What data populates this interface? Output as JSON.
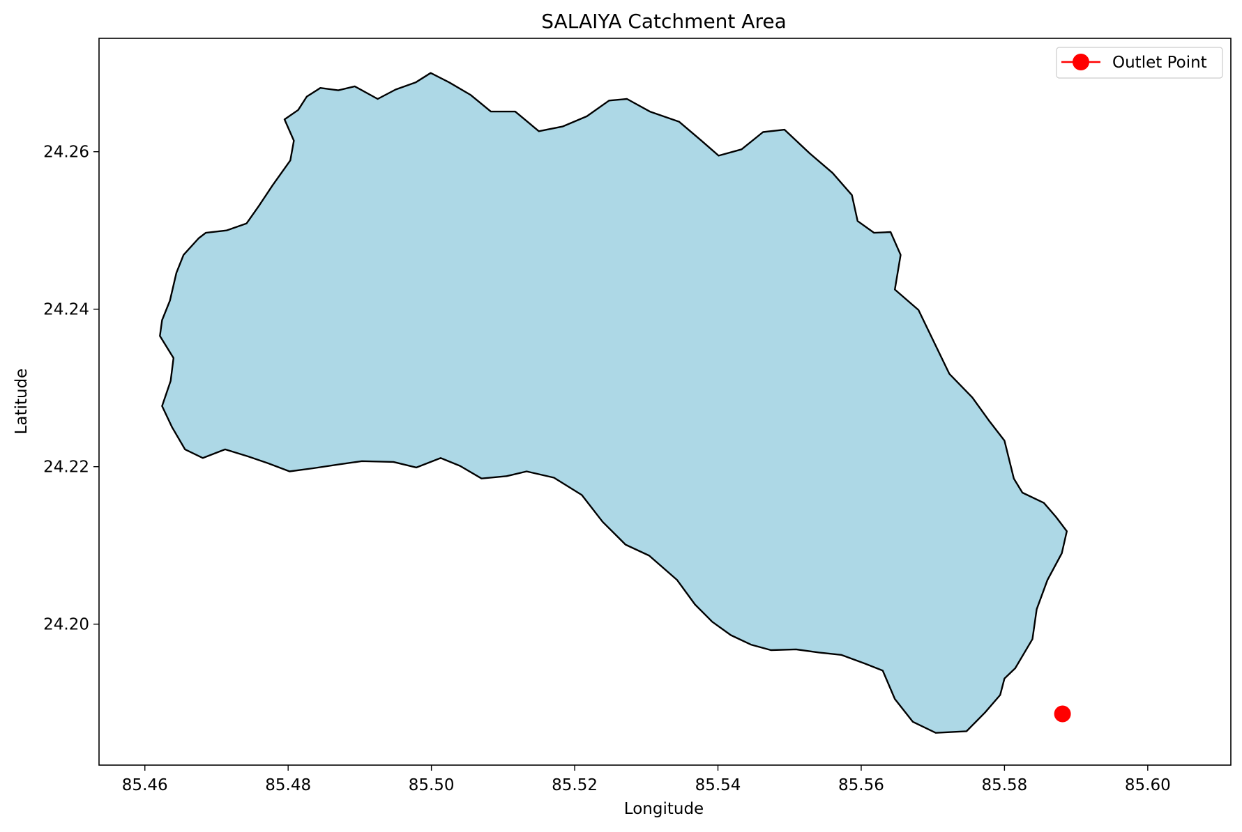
{
  "chart_data": {
    "type": "map",
    "title": "SALAIYA Catchment Area",
    "xlabel": "Longitude",
    "ylabel": "Latitude",
    "xlim": [
      85.4536,
      85.6116
    ],
    "ylim": [
      24.1821,
      24.2744
    ],
    "xticks": [
      {
        "value": 85.46,
        "label": "85.46"
      },
      {
        "value": 85.48,
        "label": "85.48"
      },
      {
        "value": 85.5,
        "label": "85.50"
      },
      {
        "value": 85.52,
        "label": "85.52"
      },
      {
        "value": 85.54,
        "label": "85.54"
      },
      {
        "value": 85.56,
        "label": "85.56"
      },
      {
        "value": 85.58,
        "label": "85.58"
      },
      {
        "value": 85.6,
        "label": "85.60"
      }
    ],
    "yticks": [
      {
        "value": 24.2,
        "label": "24.20"
      },
      {
        "value": 24.22,
        "label": "24.22"
      },
      {
        "value": 24.24,
        "label": "24.24"
      },
      {
        "value": 24.26,
        "label": "24.26"
      }
    ],
    "grid": false,
    "legend": {
      "placement": "top-right",
      "entries": [
        {
          "label": "Outlet Point",
          "color": "#ff0000",
          "marker": "circle"
        }
      ]
    },
    "catchment": {
      "fill": "#add8e6",
      "edge": "#000000",
      "boundary": [
        [
          85.4826,
          24.267
        ],
        [
          85.4845,
          24.2681
        ],
        [
          85.487,
          24.2678
        ],
        [
          85.4893,
          24.2683
        ],
        [
          85.4925,
          24.2667
        ],
        [
          85.495,
          24.2679
        ],
        [
          85.4978,
          24.2688
        ],
        [
          85.4999,
          24.27
        ],
        [
          85.5025,
          24.2688
        ],
        [
          85.5055,
          24.2672
        ],
        [
          85.5083,
          24.2651
        ],
        [
          85.5117,
          24.2651
        ],
        [
          85.515,
          24.2626
        ],
        [
          85.5183,
          24.2632
        ],
        [
          85.5217,
          24.2645
        ],
        [
          85.5248,
          24.2665
        ],
        [
          85.5273,
          24.2667
        ],
        [
          85.5305,
          24.2651
        ],
        [
          85.5346,
          24.2638
        ],
        [
          85.5377,
          24.2614
        ],
        [
          85.5401,
          24.2595
        ],
        [
          85.5433,
          24.2603
        ],
        [
          85.5463,
          24.2625
        ],
        [
          85.5493,
          24.2628
        ],
        [
          85.5528,
          24.2598
        ],
        [
          85.556,
          24.2573
        ],
        [
          85.5587,
          24.2545
        ],
        [
          85.5595,
          24.2512
        ],
        [
          85.5618,
          24.2497
        ],
        [
          85.5641,
          24.2498
        ],
        [
          85.5655,
          24.2469
        ],
        [
          85.5647,
          24.2425
        ],
        [
          85.568,
          24.2399
        ],
        [
          85.5699,
          24.2363
        ],
        [
          85.5723,
          24.2318
        ],
        [
          85.5755,
          24.2288
        ],
        [
          85.5778,
          24.2259
        ],
        [
          85.58,
          24.2233
        ],
        [
          85.5813,
          24.2185
        ],
        [
          85.5825,
          24.2167
        ],
        [
          85.5855,
          24.2154
        ],
        [
          85.5872,
          24.2136
        ],
        [
          85.5887,
          24.2118
        ],
        [
          85.588,
          24.209
        ],
        [
          85.586,
          24.2056
        ],
        [
          85.5845,
          24.2019
        ],
        [
          85.5839,
          24.1981
        ],
        [
          85.5815,
          24.1944
        ],
        [
          85.58,
          24.1931
        ],
        [
          85.5794,
          24.191
        ],
        [
          85.5773,
          24.1888
        ],
        [
          85.5747,
          24.1864
        ],
        [
          85.5704,
          24.1862
        ],
        [
          85.5672,
          24.1876
        ],
        [
          85.5647,
          24.1905
        ],
        [
          85.563,
          24.1941
        ],
        [
          85.5605,
          24.195
        ],
        [
          85.5572,
          24.1961
        ],
        [
          85.5541,
          24.1964
        ],
        [
          85.5509,
          24.1968
        ],
        [
          85.5474,
          24.1967
        ],
        [
          85.5446,
          24.1974
        ],
        [
          85.5418,
          24.1986
        ],
        [
          85.5392,
          24.2003
        ],
        [
          85.5368,
          24.2025
        ],
        [
          85.5343,
          24.2056
        ],
        [
          85.5304,
          24.2087
        ],
        [
          85.5271,
          24.2101
        ],
        [
          85.5239,
          24.213
        ],
        [
          85.521,
          24.2164
        ],
        [
          85.5171,
          24.2186
        ],
        [
          85.5133,
          24.2194
        ],
        [
          85.5105,
          24.2188
        ],
        [
          85.507,
          24.2185
        ],
        [
          85.504,
          24.2201
        ],
        [
          85.5013,
          24.2211
        ],
        [
          85.4979,
          24.2199
        ],
        [
          85.4947,
          24.2206
        ],
        [
          85.4903,
          24.2207
        ],
        [
          85.4872,
          24.2203
        ],
        [
          85.4835,
          24.2198
        ],
        [
          85.4802,
          24.2194
        ],
        [
          85.4773,
          24.2204
        ],
        [
          85.4744,
          24.2213
        ],
        [
          85.4712,
          24.2222
        ],
        [
          85.4681,
          24.2211
        ],
        [
          85.4656,
          24.2222
        ],
        [
          85.4638,
          24.225
        ],
        [
          85.4624,
          24.2277
        ],
        [
          85.4636,
          24.2309
        ],
        [
          85.464,
          24.2338
        ],
        [
          85.4621,
          24.2366
        ],
        [
          85.4624,
          24.2386
        ],
        [
          85.4635,
          24.2411
        ],
        [
          85.4644,
          24.2446
        ],
        [
          85.4654,
          24.2469
        ],
        [
          85.4675,
          24.249
        ],
        [
          85.4685,
          24.2497
        ],
        [
          85.4714,
          24.25
        ],
        [
          85.4742,
          24.2509
        ],
        [
          85.4759,
          24.2531
        ],
        [
          85.4778,
          24.2557
        ],
        [
          85.4803,
          24.2589
        ],
        [
          85.4808,
          24.2614
        ],
        [
          85.4795,
          24.2641
        ],
        [
          85.4814,
          24.2653
        ],
        [
          85.4826,
          24.267
        ]
      ]
    },
    "outlet_point": {
      "label": "Outlet Point",
      "x": 85.5881,
      "y": 24.1886,
      "color": "#ff0000"
    }
  }
}
